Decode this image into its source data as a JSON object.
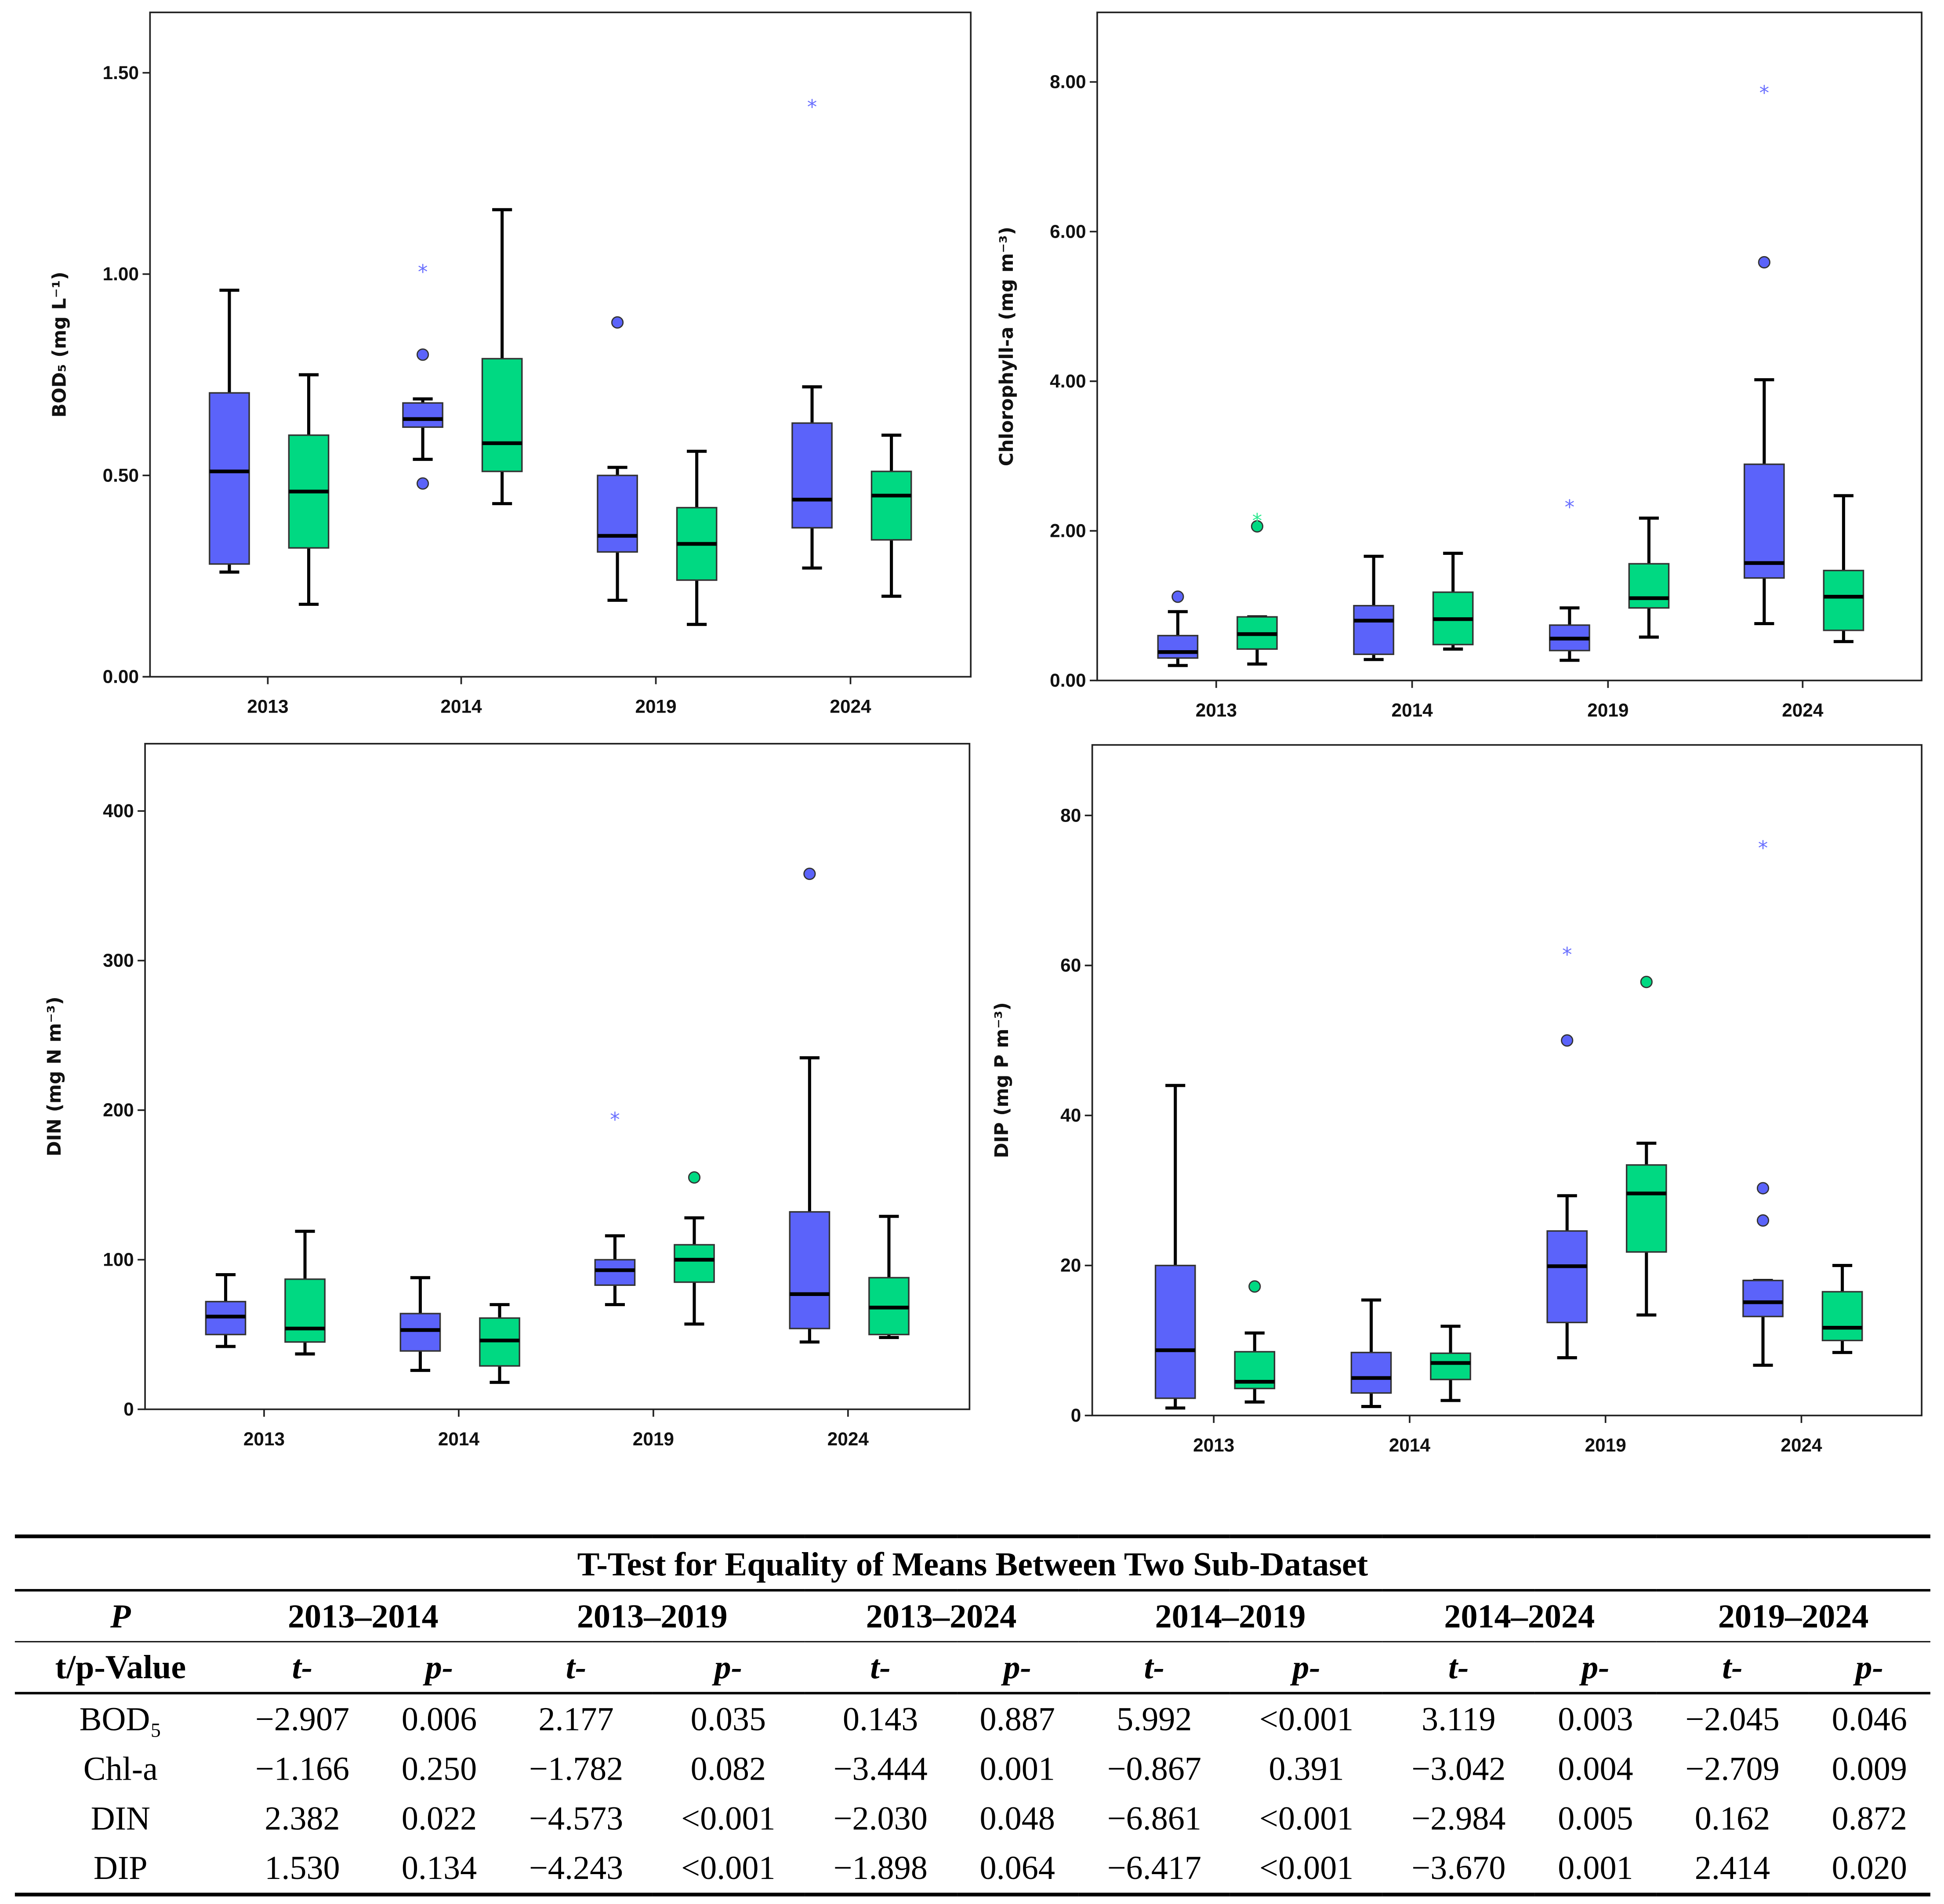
{
  "colors": {
    "group_a": "#5b63fa",
    "group_b": "#00d982",
    "star_a": "#6a70ff",
    "star_b": "#2ee890"
  },
  "chart_data": [
    {
      "type": "boxplot",
      "ylabel": "BOD₅ (mg L⁻¹)",
      "ylim": [
        0,
        1.65
      ],
      "yticks": [
        "0.00",
        "0.50",
        "1.00",
        "1.50"
      ],
      "ytick_values": [
        0,
        0.5,
        1.0,
        1.5
      ],
      "categories": [
        "2013",
        "2014",
        "2019",
        "2024"
      ],
      "boxes": [
        [
          {
            "min": 0.26,
            "q1": 0.28,
            "median": 0.51,
            "q3": 0.705,
            "max": 0.96,
            "circles": [],
            "stars": []
          },
          {
            "min": 0.18,
            "q1": 0.32,
            "median": 0.46,
            "q3": 0.6,
            "max": 0.75,
            "circles": [],
            "stars": []
          }
        ],
        [
          {
            "min": 0.54,
            "q1": 0.62,
            "median": 0.64,
            "q3": 0.68,
            "max": 0.69,
            "circles": [
              0.8,
              0.48
            ],
            "stars": [
              1.01
            ]
          },
          {
            "min": 0.43,
            "q1": 0.51,
            "median": 0.58,
            "q3": 0.79,
            "max": 1.16,
            "circles": [],
            "stars": []
          }
        ],
        [
          {
            "min": 0.19,
            "q1": 0.31,
            "median": 0.35,
            "q3": 0.5,
            "max": 0.52,
            "circles": [
              0.88
            ],
            "stars": []
          },
          {
            "min": 0.13,
            "q1": 0.24,
            "median": 0.33,
            "q3": 0.42,
            "max": 0.56,
            "circles": [],
            "stars": []
          }
        ],
        [
          {
            "min": 0.27,
            "q1": 0.37,
            "median": 0.44,
            "q3": 0.63,
            "max": 0.72,
            "circles": [],
            "stars": [
              1.42
            ]
          },
          {
            "min": 0.2,
            "q1": 0.34,
            "median": 0.45,
            "q3": 0.51,
            "max": 0.6,
            "circles": [],
            "stars": []
          }
        ]
      ]
    },
    {
      "type": "boxplot",
      "ylabel": "Chlorophyll-a (mg m⁻³)",
      "ylim": [
        0,
        8.93
      ],
      "yticks": [
        "0.00",
        "2.00",
        "4.00",
        "6.00",
        "8.00"
      ],
      "ytick_values": [
        0,
        2,
        4,
        6,
        8
      ],
      "categories": [
        "2013",
        "2014",
        "2019",
        "2024"
      ],
      "boxes": [
        [
          {
            "min": 0.2,
            "q1": 0.3,
            "median": 0.38,
            "q3": 0.6,
            "max": 0.92,
            "circles": [
              1.12
            ],
            "stars": []
          },
          {
            "min": 0.22,
            "q1": 0.42,
            "median": 0.62,
            "q3": 0.85,
            "max": 0.85,
            "circles": [
              2.06
            ],
            "stars": [
              2.16
            ]
          }
        ],
        [
          {
            "min": 0.28,
            "q1": 0.35,
            "median": 0.8,
            "q3": 1.0,
            "max": 1.66,
            "circles": [],
            "stars": []
          },
          {
            "min": 0.42,
            "q1": 0.48,
            "median": 0.82,
            "q3": 1.18,
            "max": 1.7,
            "circles": [],
            "stars": []
          }
        ],
        [
          {
            "min": 0.27,
            "q1": 0.4,
            "median": 0.56,
            "q3": 0.74,
            "max": 0.97,
            "circles": [],
            "stars": [
              2.34
            ]
          },
          {
            "min": 0.58,
            "q1": 0.97,
            "median": 1.1,
            "q3": 1.56,
            "max": 2.17,
            "circles": [],
            "stars": []
          }
        ],
        [
          {
            "min": 0.76,
            "q1": 1.37,
            "median": 1.57,
            "q3": 2.89,
            "max": 4.02,
            "circles": [
              5.59
            ],
            "stars": [
              7.88
            ]
          },
          {
            "min": 0.52,
            "q1": 0.67,
            "median": 1.12,
            "q3": 1.47,
            "max": 2.47,
            "circles": [],
            "stars": []
          }
        ]
      ]
    },
    {
      "type": "boxplot",
      "ylabel": "DIN (mg N m⁻³)",
      "ylim": [
        0,
        445
      ],
      "yticks": [
        "0",
        "100",
        "200",
        "300",
        "400"
      ],
      "ytick_values": [
        0,
        100,
        200,
        300,
        400
      ],
      "categories": [
        "2013",
        "2014",
        "2019",
        "2024"
      ],
      "boxes": [
        [
          {
            "min": 42,
            "q1": 50,
            "median": 62,
            "q3": 72,
            "max": 90,
            "circles": [],
            "stars": []
          },
          {
            "min": 37,
            "q1": 45,
            "median": 54,
            "q3": 87,
            "max": 119,
            "circles": [],
            "stars": []
          }
        ],
        [
          {
            "min": 26,
            "q1": 39,
            "median": 53,
            "q3": 64,
            "max": 88,
            "circles": [],
            "stars": []
          },
          {
            "min": 18,
            "q1": 29,
            "median": 46,
            "q3": 61,
            "max": 70,
            "circles": [],
            "stars": []
          }
        ],
        [
          {
            "min": 70,
            "q1": 83,
            "median": 93,
            "q3": 100,
            "max": 116,
            "circles": [],
            "stars": [
              195
            ]
          },
          {
            "min": 57,
            "q1": 85,
            "median": 100,
            "q3": 110,
            "max": 128,
            "circles": [
              155
            ],
            "stars": []
          }
        ],
        [
          {
            "min": 45,
            "q1": 54,
            "median": 77,
            "q3": 132,
            "max": 235,
            "circles": [
              358
            ],
            "stars": []
          },
          {
            "min": 48,
            "q1": 50,
            "median": 68,
            "q3": 88,
            "max": 129,
            "circles": [],
            "stars": []
          }
        ]
      ]
    },
    {
      "type": "boxplot",
      "ylabel": "DIP (mg P m⁻³)",
      "ylim": [
        0,
        89.4
      ],
      "yticks": [
        "0",
        "20",
        "40",
        "60",
        "80"
      ],
      "ytick_values": [
        0,
        20,
        40,
        60,
        80
      ],
      "categories": [
        "2013",
        "2014",
        "2019",
        "2024"
      ],
      "boxes": [
        [
          {
            "min": 1.0,
            "q1": 2.3,
            "median": 8.7,
            "q3": 20,
            "max": 44,
            "circles": [],
            "stars": []
          },
          {
            "min": 1.8,
            "q1": 3.6,
            "median": 4.5,
            "q3": 8.5,
            "max": 11,
            "circles": [
              17.2
            ],
            "stars": []
          }
        ],
        [
          {
            "min": 1.2,
            "q1": 3.0,
            "median": 5.0,
            "q3": 8.4,
            "max": 15.4,
            "circles": [],
            "stars": []
          },
          {
            "min": 2.0,
            "q1": 4.8,
            "median": 7.0,
            "q3": 8.3,
            "max": 11.9,
            "circles": [],
            "stars": []
          }
        ],
        [
          {
            "min": 7.7,
            "q1": 12.4,
            "median": 19.9,
            "q3": 24.6,
            "max": 29.3,
            "circles": [
              50
            ],
            "stars": [
              61.7
            ]
          },
          {
            "min": 13.4,
            "q1": 21.8,
            "median": 29.6,
            "q3": 33.4,
            "max": 36.3,
            "circles": [
              57.8
            ],
            "stars": []
          }
        ],
        [
          {
            "min": 6.7,
            "q1": 13.2,
            "median": 15.1,
            "q3": 18,
            "max": 18,
            "circles": [
              26,
              30.3
            ],
            "stars": [
              75.9
            ]
          },
          {
            "min": 8.4,
            "q1": 10,
            "median": 11.7,
            "q3": 16.5,
            "max": 20,
            "circles": [],
            "stars": []
          }
        ]
      ]
    }
  ],
  "table": {
    "title": "T-Test for Equality of Means Between Two Sub-Dataset",
    "corner": "P",
    "pairs": [
      "2013–2014",
      "2013–2019",
      "2013–2024",
      "2014–2019",
      "2014–2024",
      "2019–2024"
    ],
    "subheader_label": "t/p-Value",
    "t_label": "t-",
    "p_label": "p-",
    "rows": [
      {
        "name": "BOD₅",
        "values": [
          "−2.907",
          "0.006",
          "2.177",
          "0.035",
          "0.143",
          "0.887",
          "5.992",
          "<0.001",
          "3.119",
          "0.003",
          "−2.045",
          "0.046"
        ]
      },
      {
        "name": "Chl-a",
        "values": [
          "−1.166",
          "0.250",
          "−1.782",
          "0.082",
          "−3.444",
          "0.001",
          "−0.867",
          "0.391",
          "−3.042",
          "0.004",
          "−2.709",
          "0.009"
        ]
      },
      {
        "name": "DIN",
        "values": [
          "2.382",
          "0.022",
          "−4.573",
          "<0.001",
          "−2.030",
          "0.048",
          "−6.861",
          "<0.001",
          "−2.984",
          "0.005",
          "0.162",
          "0.872"
        ]
      },
      {
        "name": "DIP",
        "values": [
          "1.530",
          "0.134",
          "−4.243",
          "<0.001",
          "−1.898",
          "0.064",
          "−6.417",
          "<0.001",
          "−3.670",
          "0.001",
          "2.414",
          "0.020"
        ]
      }
    ]
  }
}
